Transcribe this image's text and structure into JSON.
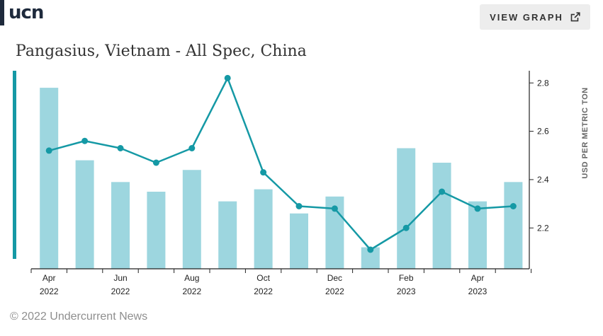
{
  "logo": {
    "text": "ucn"
  },
  "view_button": {
    "label": "VIEW GRAPH",
    "icon": "external-link-icon"
  },
  "footer": {
    "copyright": "© 2022 Undercurrent News"
  },
  "colors": {
    "bar": "#9dd6df",
    "line": "#1599a5",
    "accent": "#1599a5",
    "axis": "#222222"
  },
  "chart_data": {
    "type": "bar+line",
    "title": "Pangasius, Vietnam - All Spec, China",
    "ylabel": "USD PER METRIC TON",
    "ylim": [
      2.05,
      2.83
    ],
    "yticks": [
      2.2,
      2.4,
      2.6,
      2.8
    ],
    "y_axis_position": "right",
    "grid": false,
    "categories": [
      "Apr 2022",
      "May 2022",
      "Jun 2022",
      "Jul 2022",
      "Aug 2022",
      "Sep 2022",
      "Oct 2022",
      "Nov 2022",
      "Dec 2022",
      "Jan 2023",
      "Feb 2023",
      "Mar 2023",
      "Apr 2023",
      "May 2023"
    ],
    "xtick_labels": [
      {
        "index": 0,
        "line1": "Apr",
        "line2": "2022"
      },
      {
        "index": 2,
        "line1": "Jun",
        "line2": "2022"
      },
      {
        "index": 4,
        "line1": "Aug",
        "line2": "2022"
      },
      {
        "index": 6,
        "line1": "Oct",
        "line2": "2022"
      },
      {
        "index": 8,
        "line1": "Dec",
        "line2": "2022"
      },
      {
        "index": 10,
        "line1": "Feb",
        "line2": "2023"
      },
      {
        "index": 12,
        "line1": "Apr",
        "line2": "2023"
      }
    ],
    "series": [
      {
        "type": "bar",
        "values": [
          2.78,
          2.48,
          2.39,
          2.35,
          2.44,
          2.31,
          2.36,
          2.26,
          2.33,
          2.12,
          2.53,
          2.47,
          2.31,
          2.39
        ]
      },
      {
        "type": "line",
        "values": [
          2.52,
          2.56,
          2.53,
          2.47,
          2.53,
          2.82,
          2.43,
          2.29,
          2.28,
          2.11,
          2.2,
          2.35,
          2.28,
          2.29
        ]
      }
    ]
  }
}
